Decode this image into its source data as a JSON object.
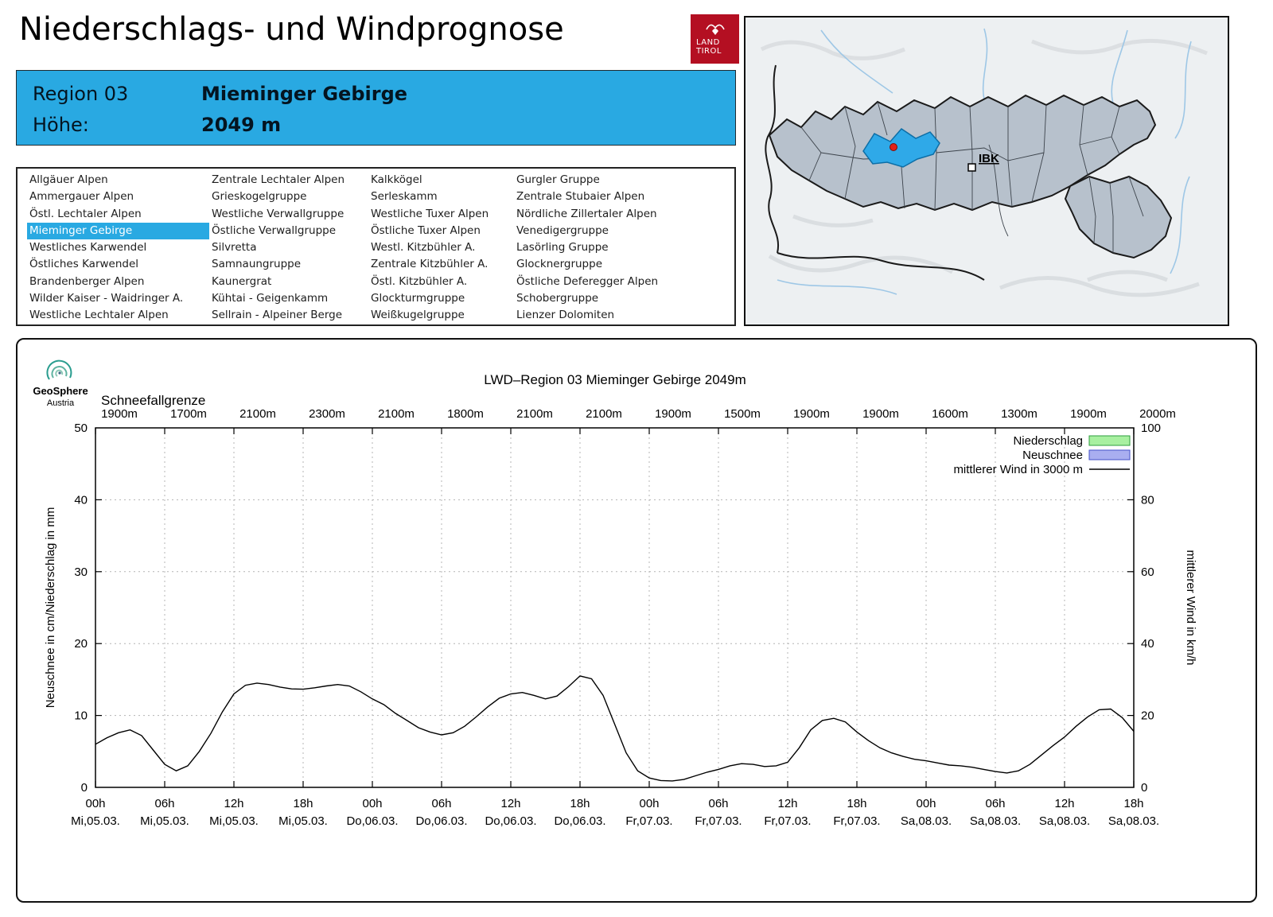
{
  "header": {
    "title": "Niederschlags- und Windprognose",
    "logo_line1": "LAND",
    "logo_line2": "TIROL"
  },
  "region_box": {
    "region_label": "Region 03",
    "region_name": "Mieminger Gebirge",
    "altitude_label": "Höhe:",
    "altitude_value": "2049 m",
    "bg_color": "#29a9e2"
  },
  "region_list": {
    "selected": "Mieminger Gebirge",
    "columns": [
      [
        "Allgäuer Alpen",
        "Ammergauer Alpen",
        "Östl. Lechtaler Alpen",
        "Mieminger Gebirge",
        "Westliches Karwendel",
        "Östliches Karwendel",
        "Brandenberger Alpen",
        "Wilder Kaiser - Waidringer A.",
        "Westliche Lechtaler Alpen"
      ],
      [
        "Zentrale Lechtaler Alpen",
        "Grieskogelgruppe",
        "Westliche Verwallgruppe",
        "Östliche Verwallgruppe",
        "Silvretta",
        "Samnaungruppe",
        "Kaunergrat",
        "Kühtai - Geigenkamm",
        "Sellrain - Alpeiner Berge"
      ],
      [
        "Kalkkögel",
        "Serleskamm",
        "Westliche Tuxer Alpen",
        "Östliche Tuxer Alpen",
        "Westl. Kitzbühler A.",
        "Zentrale Kitzbühler A.",
        "Östl. Kitzbühler A.",
        "Glockturmgruppe",
        "Weißkugelgruppe"
      ],
      [
        "Gurgler Gruppe",
        "Zentrale Stubaier Alpen",
        "Nördliche Zillertaler Alpen",
        "Venedigergruppe",
        "Lasörling Gruppe",
        "Glocknergruppe",
        "Östliche Deferegger Alpen",
        "Schobergruppe",
        "Lienzer Dolomiten"
      ]
    ]
  },
  "map": {
    "city_label": "IBK",
    "selected_region_color": "#2fa9e8",
    "marker_color": "#e32219"
  },
  "chart_header": {
    "logo_name": "GeoSphere",
    "logo_sub": "Austria"
  },
  "chart_data": {
    "type": "line",
    "title": "LWD–Region 03 Mieminger Gebirge 2049m",
    "snowline_label": "Schneefallgrenze",
    "snowline_values_m": [
      "1900m",
      "1700m",
      "2100m",
      "2300m",
      "2100m",
      "1800m",
      "2100m",
      "2100m",
      "1900m",
      "1500m",
      "1900m",
      "1900m",
      "1600m",
      "1300m",
      "1900m",
      "2000m"
    ],
    "ylabel_left": "Neuschnee in cm/Niederschlag in mm",
    "ylabel_right": "mittlerer Wind in km/h",
    "ylim_left": [
      0,
      50
    ],
    "ylim_right": [
      0,
      100
    ],
    "x_hours_range": [
      0,
      90
    ],
    "x_tick_interval_hours": 6,
    "x_ticks": [
      {
        "hour": "00h",
        "date": "Mi,05.03."
      },
      {
        "hour": "06h",
        "date": "Mi,05.03."
      },
      {
        "hour": "12h",
        "date": "Mi,05.03."
      },
      {
        "hour": "18h",
        "date": "Mi,05.03."
      },
      {
        "hour": "00h",
        "date": "Do,06.03."
      },
      {
        "hour": "06h",
        "date": "Do,06.03."
      },
      {
        "hour": "12h",
        "date": "Do,06.03."
      },
      {
        "hour": "18h",
        "date": "Do,06.03."
      },
      {
        "hour": "00h",
        "date": "Fr,07.03."
      },
      {
        "hour": "06h",
        "date": "Fr,07.03."
      },
      {
        "hour": "12h",
        "date": "Fr,07.03."
      },
      {
        "hour": "18h",
        "date": "Fr,07.03."
      },
      {
        "hour": "00h",
        "date": "Sa,08.03."
      },
      {
        "hour": "06h",
        "date": "Sa,08.03."
      },
      {
        "hour": "12h",
        "date": "Sa,08.03."
      },
      {
        "hour": "18h",
        "date": "Sa,08.03."
      }
    ],
    "legend": [
      {
        "label": "Niederschlag",
        "swatch": "box",
        "fill": "#a8f0a0",
        "border": "#2e9e3e"
      },
      {
        "label": "Neuschnee",
        "swatch": "box",
        "fill": "#a9aef0",
        "border": "#4450c8"
      },
      {
        "label": "mittlerer Wind in 3000 m",
        "swatch": "line",
        "color": "#000000"
      }
    ],
    "series": [
      {
        "name": "Niederschlag",
        "type": "bar",
        "axis": "left",
        "unit": "mm",
        "values": []
      },
      {
        "name": "Neuschnee",
        "type": "bar",
        "axis": "left",
        "unit": "cm",
        "values": []
      },
      {
        "name": "mittlerer Wind in 3000 m",
        "type": "line",
        "axis": "right",
        "unit": "km/h",
        "points": [
          [
            0,
            12
          ],
          [
            1,
            13.8
          ],
          [
            2,
            15.2
          ],
          [
            3,
            16
          ],
          [
            4,
            14.4
          ],
          [
            5,
            10.4
          ],
          [
            6,
            6.4
          ],
          [
            7,
            4.6
          ],
          [
            8,
            6
          ],
          [
            9,
            10
          ],
          [
            10,
            15
          ],
          [
            11,
            21
          ],
          [
            12,
            26
          ],
          [
            13,
            28.4
          ],
          [
            14,
            29
          ],
          [
            15,
            28.6
          ],
          [
            16,
            27.9
          ],
          [
            17,
            27.4
          ],
          [
            18,
            27.3
          ],
          [
            19,
            27.7
          ],
          [
            20,
            28.2
          ],
          [
            21,
            28.6
          ],
          [
            22,
            28.2
          ],
          [
            23,
            26.6
          ],
          [
            24,
            24.6
          ],
          [
            25,
            23
          ],
          [
            26,
            20.6
          ],
          [
            27,
            18.6
          ],
          [
            28,
            16.6
          ],
          [
            29,
            15.4
          ],
          [
            30,
            14.6
          ],
          [
            31,
            15.2
          ],
          [
            32,
            17
          ],
          [
            33,
            19.6
          ],
          [
            34,
            22.4
          ],
          [
            35,
            24.8
          ],
          [
            36,
            26
          ],
          [
            37,
            26.4
          ],
          [
            38,
            25.6
          ],
          [
            39,
            24.6
          ],
          [
            40,
            25.4
          ],
          [
            41,
            28
          ],
          [
            42,
            31
          ],
          [
            43,
            30.2
          ],
          [
            44,
            25.6
          ],
          [
            45,
            17.6
          ],
          [
            46,
            9.6
          ],
          [
            47,
            4.6
          ],
          [
            48,
            2.6
          ],
          [
            49,
            1.9
          ],
          [
            50,
            1.8
          ],
          [
            51,
            2.2
          ],
          [
            52,
            3.2
          ],
          [
            53,
            4.2
          ],
          [
            54,
            5
          ],
          [
            55,
            6
          ],
          [
            56,
            6.6
          ],
          [
            57,
            6.4
          ],
          [
            58,
            5.8
          ],
          [
            59,
            6
          ],
          [
            60,
            7
          ],
          [
            61,
            11
          ],
          [
            62,
            16
          ],
          [
            63,
            18.6
          ],
          [
            64,
            19.2
          ],
          [
            65,
            18.2
          ],
          [
            66,
            15.4
          ],
          [
            67,
            13
          ],
          [
            68,
            11
          ],
          [
            69,
            9.6
          ],
          [
            70,
            8.6
          ],
          [
            71,
            7.8
          ],
          [
            72,
            7.4
          ],
          [
            73,
            6.8
          ],
          [
            74,
            6.2
          ],
          [
            75,
            6
          ],
          [
            76,
            5.6
          ],
          [
            77,
            5
          ],
          [
            78,
            4.4
          ],
          [
            79,
            4
          ],
          [
            80,
            4.6
          ],
          [
            81,
            6.4
          ],
          [
            82,
            9
          ],
          [
            83,
            11.6
          ],
          [
            84,
            14
          ],
          [
            85,
            17
          ],
          [
            86,
            19.6
          ],
          [
            87,
            21.6
          ],
          [
            88,
            21.8
          ],
          [
            89,
            19.4
          ],
          [
            90,
            15.6
          ]
        ]
      }
    ]
  }
}
